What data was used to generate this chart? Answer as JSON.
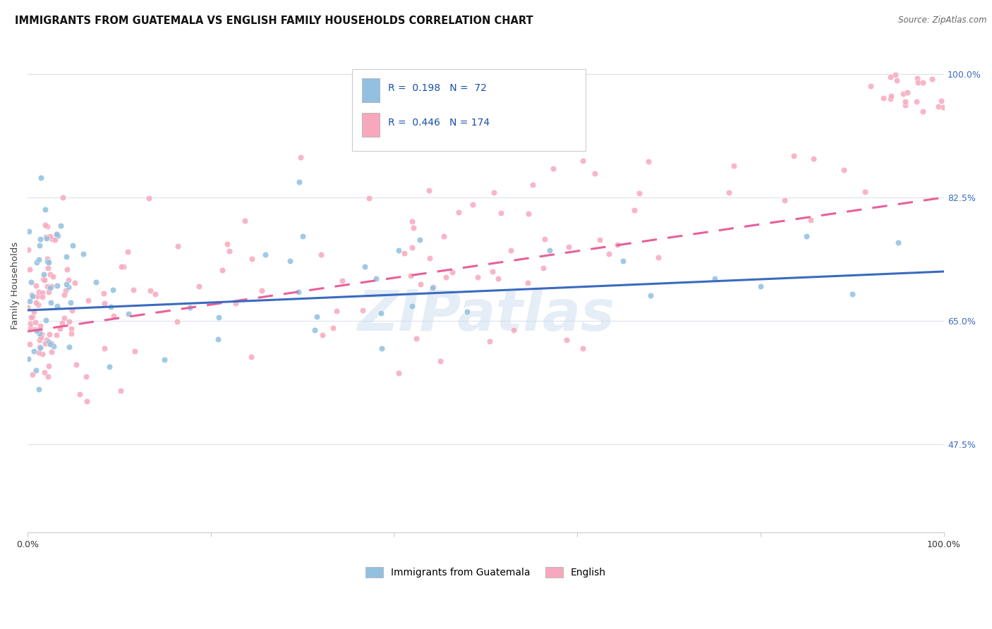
{
  "title": "IMMIGRANTS FROM GUATEMALA VS ENGLISH FAMILY HOUSEHOLDS CORRELATION CHART",
  "source": "Source: ZipAtlas.com",
  "ylabel": "Family Households",
  "legend_label_blue": "Immigrants from Guatemala",
  "legend_label_pink": "English",
  "R_blue": "0.198",
  "N_blue": "72",
  "R_pink": "0.446",
  "N_pink": "174",
  "color_blue": "#92c0e0",
  "color_pink": "#f7a8bc",
  "line_color_blue": "#3a6abf",
  "line_color_pink": "#e8609a",
  "line_color_gray_dash": "#aaaaaa",
  "watermark_color": "#ccddf0",
  "xmin": 0.0,
  "xmax": 100.0,
  "ymin": 35.0,
  "ymax": 105.0,
  "y_ticks": [
    47.5,
    65.0,
    82.5,
    100.0
  ],
  "background_color": "#ffffff",
  "grid_color": "#dde4ef",
  "title_fontsize": 10.5,
  "source_fontsize": 8.5,
  "axis_label_fontsize": 9.5,
  "tick_label_fontsize": 9,
  "legend_fontsize": 10,
  "dot_size": 38,
  "dot_alpha": 0.85,
  "blue_slope": 0.055,
  "blue_intercept": 66.5,
  "pink_slope": 0.19,
  "pink_intercept": 63.5
}
